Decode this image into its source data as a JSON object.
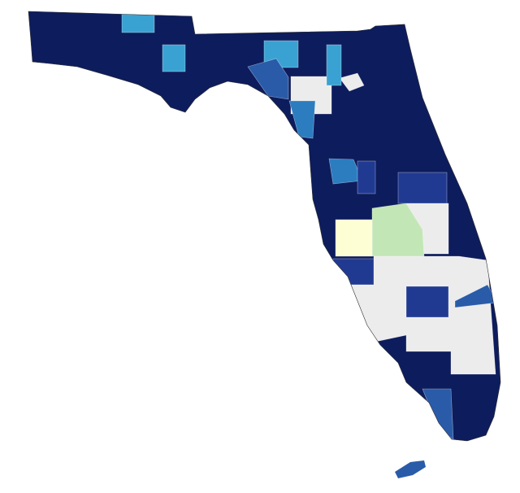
{
  "map": {
    "palette": [
      "#0d1c5c",
      "#213a91",
      "#2a5ba9",
      "#2b7dbf",
      "#3aa2d2",
      "#ececec",
      "#c3e6b7",
      "#fdfed3"
    ]
  }
}
